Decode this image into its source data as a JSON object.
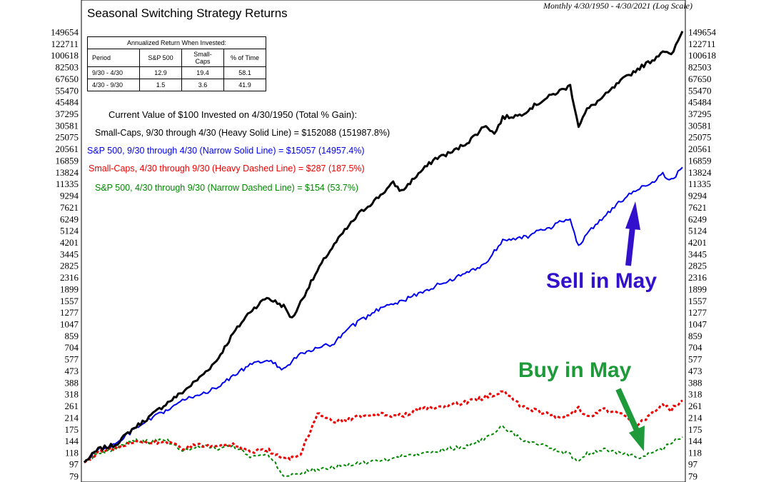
{
  "chart_data": {
    "type": "line",
    "title": "Seasonal Switching Strategy Returns",
    "subtitle": "Monthly 4/30/1950 - 4/30/2021 (Log Scale)",
    "y_scale": "log",
    "ylim": [
      79,
      149654
    ],
    "xlim": [
      1950.33,
      2021.33
    ],
    "y_ticks": [
      "149654",
      "122711",
      "100618",
      "82503",
      "67650",
      "55470",
      "45484",
      "37295",
      "30581",
      "25075",
      "20561",
      "16859",
      "13824",
      "11335",
      "9294",
      "7621",
      "6249",
      "5124",
      "4201",
      "3445",
      "2825",
      "2316",
      "1899",
      "1557",
      "1277",
      "1047",
      "859",
      "704",
      "577",
      "473",
      "388",
      "318",
      "261",
      "214",
      "175",
      "144",
      "118",
      "97",
      "79"
    ],
    "y_tick_values": [
      149654,
      122711,
      100618,
      82503,
      67650,
      55470,
      45484,
      37295,
      30581,
      25075,
      20561,
      16859,
      13824,
      11335,
      9294,
      7621,
      6249,
      5124,
      4201,
      3445,
      2825,
      2316,
      1899,
      1557,
      1277,
      1047,
      859,
      704,
      577,
      473,
      388,
      318,
      261,
      214,
      175,
      144,
      118,
      97,
      79
    ],
    "grid": false,
    "series": [
      {
        "color": "#000000",
        "width": 3,
        "dash": "",
        "x": [
          1950.33,
          1952,
          1954,
          1956,
          1958,
          1960,
          1962,
          1964,
          1966,
          1968,
          1970,
          1972,
          1974,
          1975,
          1977,
          1979,
          1981,
          1983,
          1985,
          1987,
          1988,
          1990,
          1992,
          1994,
          1996,
          1998,
          1999,
          2000,
          2002,
          2003,
          2004,
          2006,
          2007,
          2008,
          2009,
          2010,
          2012,
          2014,
          2016,
          2018,
          2019,
          2020,
          2021.33
        ],
        "y": [
          100,
          125,
          135,
          175,
          215,
          270,
          330,
          420,
          560,
          890,
          1300,
          1650,
          1420,
          1150,
          2000,
          3300,
          4900,
          6900,
          8800,
          11500,
          10000,
          13500,
          17500,
          19500,
          23500,
          31000,
          26500,
          35000,
          36500,
          40000,
          44000,
          52000,
          56000,
          60000,
          30500,
          40000,
          50000,
          65000,
          80000,
          95000,
          110000,
          100000,
          152088
        ]
      },
      {
        "color": "#0000ee",
        "width": 2,
        "dash": "",
        "x": [
          1950.33,
          1952,
          1954,
          1956,
          1958,
          1960,
          1962,
          1964,
          1966,
          1968,
          1970,
          1972,
          1974,
          1976,
          1978,
          1980,
          1982,
          1984,
          1986,
          1988,
          1990,
          1992,
          1994,
          1996,
          1998,
          2000,
          2002,
          2003,
          2004,
          2006,
          2007,
          2008,
          2009,
          2010,
          2012,
          2014,
          2016,
          2018,
          2019,
          2020,
          2021.33
        ],
        "y": [
          100,
          125,
          135,
          170,
          205,
          240,
          285,
          320,
          350,
          440,
          520,
          570,
          490,
          630,
          690,
          760,
          1000,
          1200,
          1450,
          1550,
          1750,
          2000,
          2250,
          2550,
          2950,
          4400,
          4600,
          4600,
          5000,
          5500,
          6000,
          6300,
          3900,
          5000,
          6400,
          8500,
          10400,
          12000,
          13500,
          12000,
          15057
        ]
      },
      {
        "color": "#ee0000",
        "width": 3,
        "dash": "4,3",
        "x": [
          1950.33,
          1952,
          1954,
          1956,
          1958,
          1960,
          1962,
          1964,
          1966,
          1968,
          1970,
          1972,
          1974,
          1976,
          1978,
          1980,
          1982,
          1984,
          1986,
          1988,
          1990,
          1992,
          1994,
          1996,
          1998,
          2000,
          2002,
          2004,
          2006,
          2008,
          2009,
          2010,
          2012,
          2014,
          2016,
          2018,
          2019,
          2020,
          2021.33
        ],
        "y": [
          100,
          120,
          128,
          142,
          140,
          142,
          128,
          134,
          130,
          135,
          120,
          125,
          105,
          115,
          230,
          200,
          210,
          225,
          225,
          220,
          245,
          255,
          265,
          280,
          305,
          335,
          265,
          240,
          220,
          220,
          255,
          215,
          245,
          230,
          190,
          235,
          265,
          245,
          287
        ]
      },
      {
        "color": "#008800",
        "width": 2,
        "dash": "4,3",
        "x": [
          1950.33,
          1952,
          1954,
          1956,
          1958,
          1960,
          1962,
          1964,
          1966,
          1968,
          1970,
          1972,
          1974,
          1976,
          1978,
          1980,
          1982,
          1984,
          1986,
          1988,
          1990,
          1992,
          1994,
          1996,
          1998,
          2000,
          2002,
          2004,
          2006,
          2008,
          2009,
          2010,
          2012,
          2014,
          2016,
          2018,
          2019,
          2020,
          2021.33
        ],
        "y": [
          100,
          118,
          126,
          145,
          142,
          148,
          120,
          132,
          127,
          133,
          112,
          117,
          81,
          83,
          90,
          93,
          97,
          100,
          104,
          110,
          117,
          121,
          127,
          133,
          150,
          185,
          150,
          140,
          125,
          115,
          100,
          117,
          125,
          117,
          109,
          120,
          125,
          140,
          154
        ]
      }
    ]
  },
  "table": {
    "caption": "Annualized Return When Invested:",
    "headers": [
      "Period",
      "S&P 500",
      "Small-Caps",
      "% of Time"
    ],
    "rows": [
      [
        "9/30 - 4/30",
        "12.9",
        "19.4",
        "58.1"
      ],
      [
        "4/30 - 9/30",
        "1.5",
        "3.6",
        "41.9"
      ]
    ]
  },
  "summary": {
    "heading": "Current Value of $100 Invested on 4/30/1950 (Total % Gain):",
    "lines": [
      {
        "text": "Small-Caps, 9/30 through 4/30 (Heavy Solid Line) = $152088 (151987.8%)",
        "color": "#000000"
      },
      {
        "text": "S&P 500, 9/30 through 4/30 (Narrow Solid Line) = $15057 (14957.4%)",
        "color": "#0000ee"
      },
      {
        "text": "Small-Caps, 4/30 through 9/30 (Heavy Dashed Line) = $287 (187.5%)",
        "color": "#ee0000"
      },
      {
        "text": "S&P 500, 4/30 through 9/30 (Narrow Dashed Line) = $154 (53.7%)",
        "color": "#008800"
      }
    ]
  },
  "annotations": {
    "sell": {
      "text": "Sell in May",
      "color": "#3311cc"
    },
    "buy": {
      "text": "Buy in May",
      "color": "#1e9a3a"
    }
  }
}
